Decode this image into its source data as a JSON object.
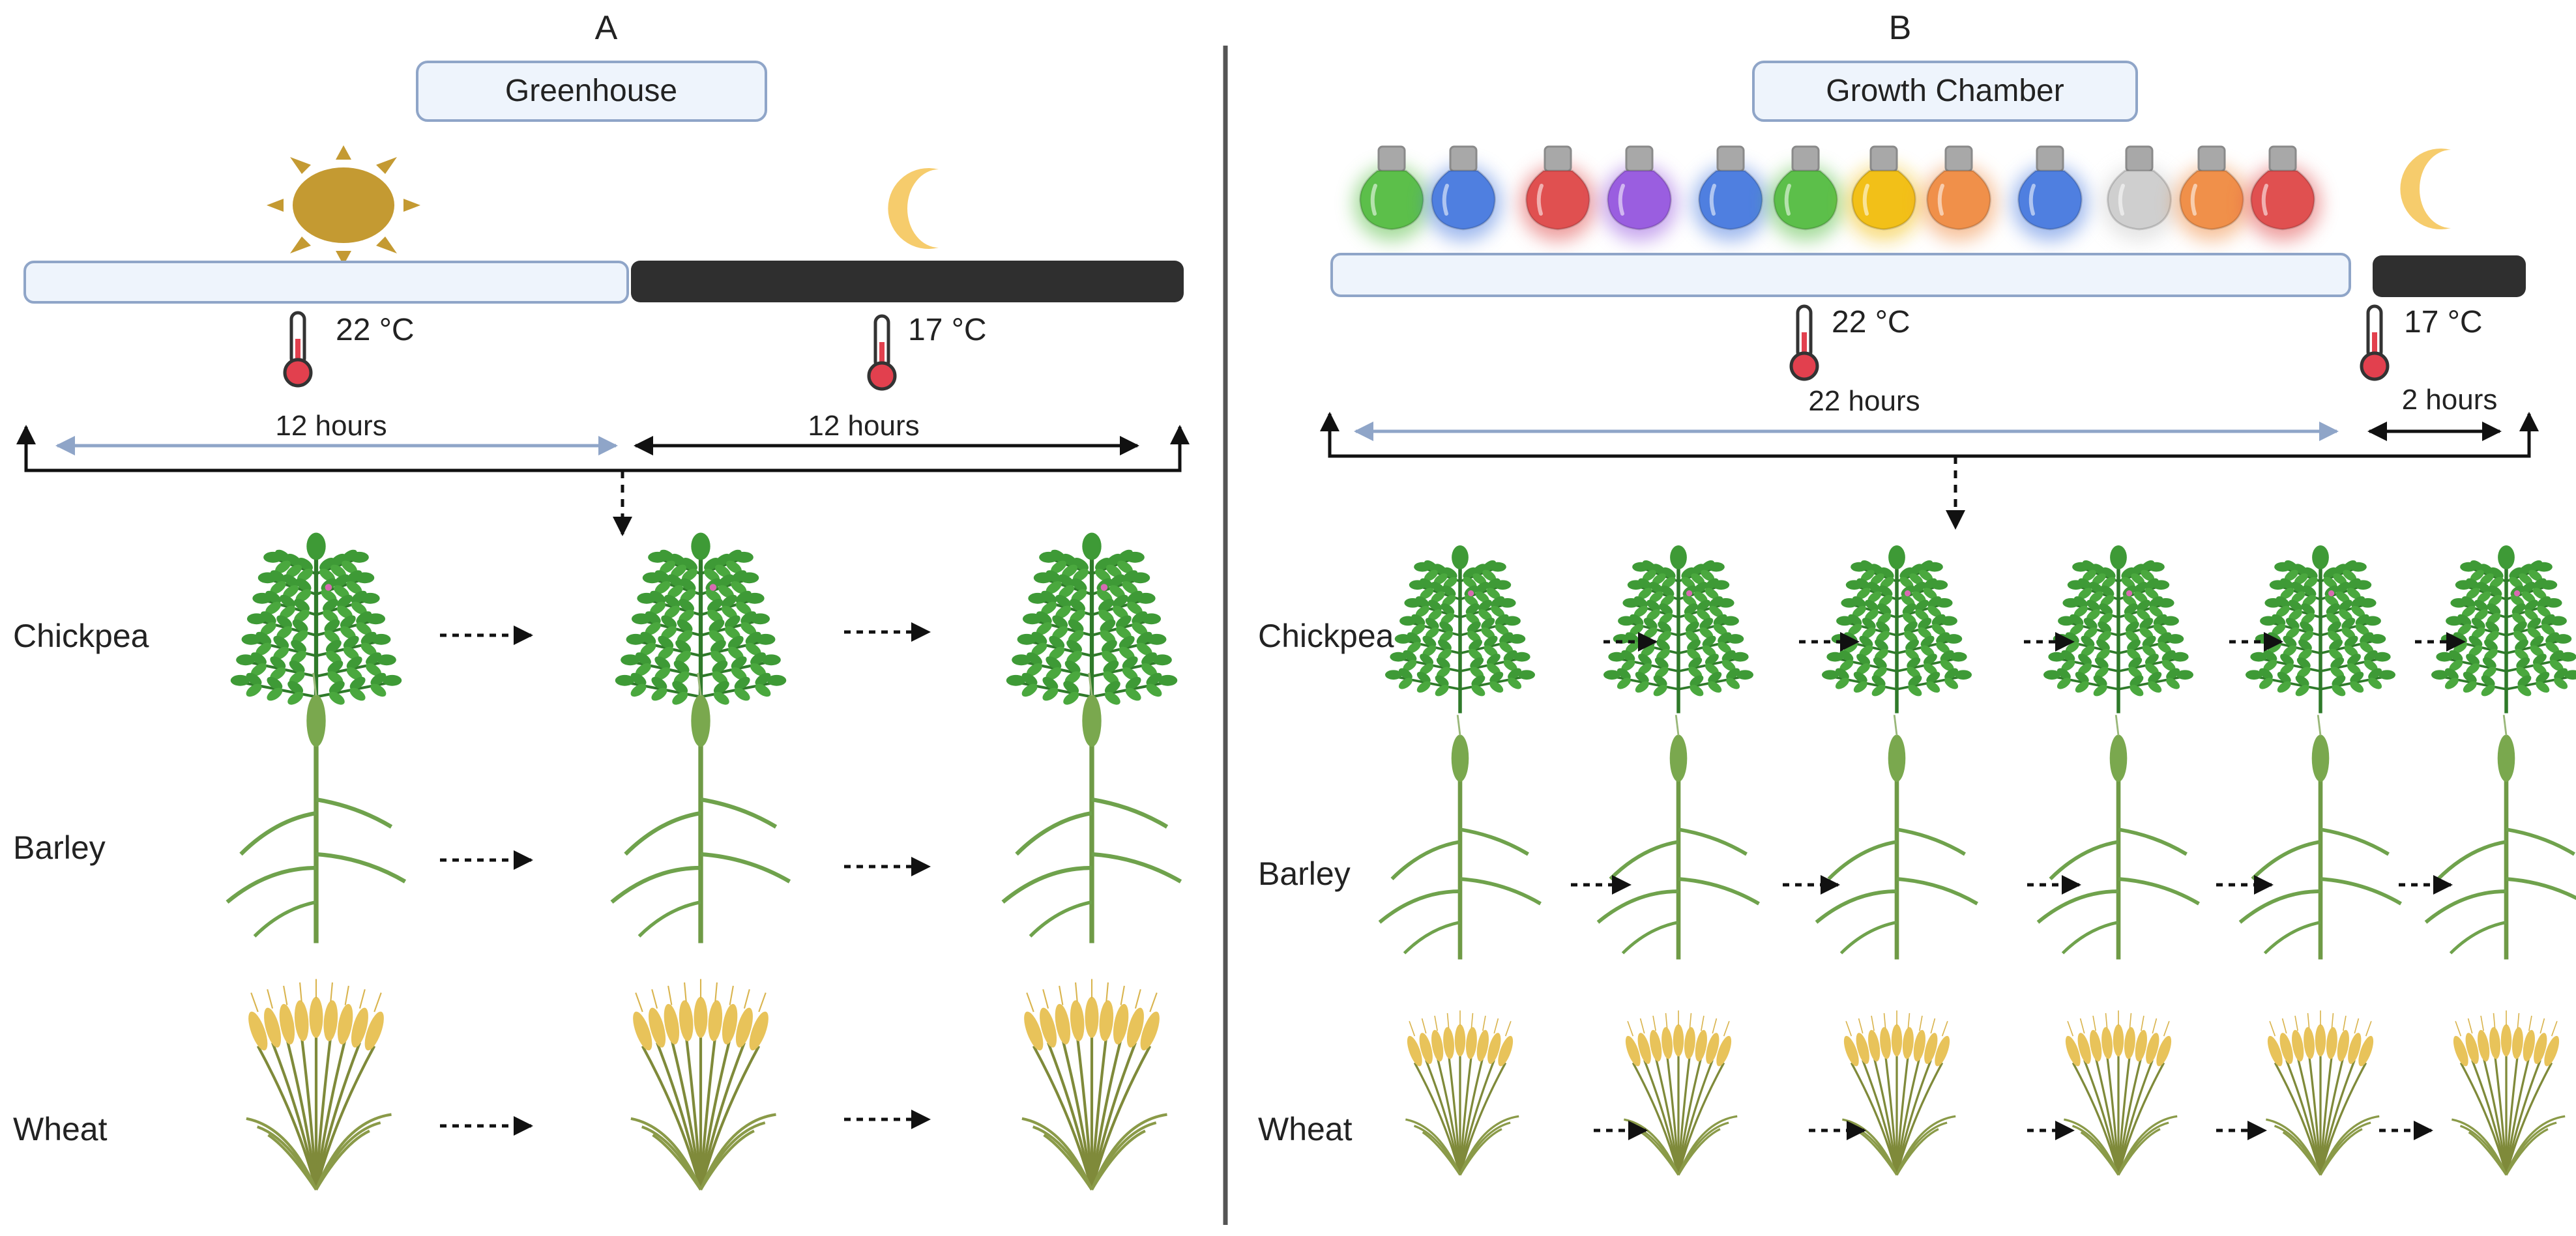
{
  "panels": {
    "a": {
      "letter": "A",
      "title": "Greenhouse",
      "day_temp": "22 °C",
      "night_temp": "17 °C",
      "day_duration": "12 hours",
      "night_duration": "12 hours",
      "light_source_icon": "sun-icon",
      "night_icon": "moon-icon"
    },
    "b": {
      "letter": "B",
      "title": "Growth Chamber",
      "day_temp": "22 °C",
      "night_temp": "17 °C",
      "day_duration": "22 hours",
      "night_duration": "2 hours",
      "night_icon": "moon-icon",
      "bulb_colors": [
        "#5cbf4a",
        "#4f7fe0",
        "#e05050",
        "#9a5ee0",
        "#4f7fe0",
        "#5cbf4a",
        "#f2c018",
        "#f0904a",
        "#4f7fe0",
        "#cfcfcf",
        "#f0904a",
        "#e05050"
      ]
    }
  },
  "crops": {
    "chickpea": "Chickpea",
    "barley": "Barley",
    "wheat": "Wheat"
  },
  "colors": {
    "day_bar": "#eef4fc",
    "day_bar_border": "#8fa5c8",
    "night_bar": "#2f2f2f",
    "sun": "#c49a32",
    "moon": "#f6cc6c",
    "thermometer_bulb": "#e2404e",
    "chickpea_leaf": "#3e9a36",
    "barley_green": "#6fa24c",
    "wheat_gold": "#e8c35a",
    "day_arrow": "#8fa5c8"
  }
}
